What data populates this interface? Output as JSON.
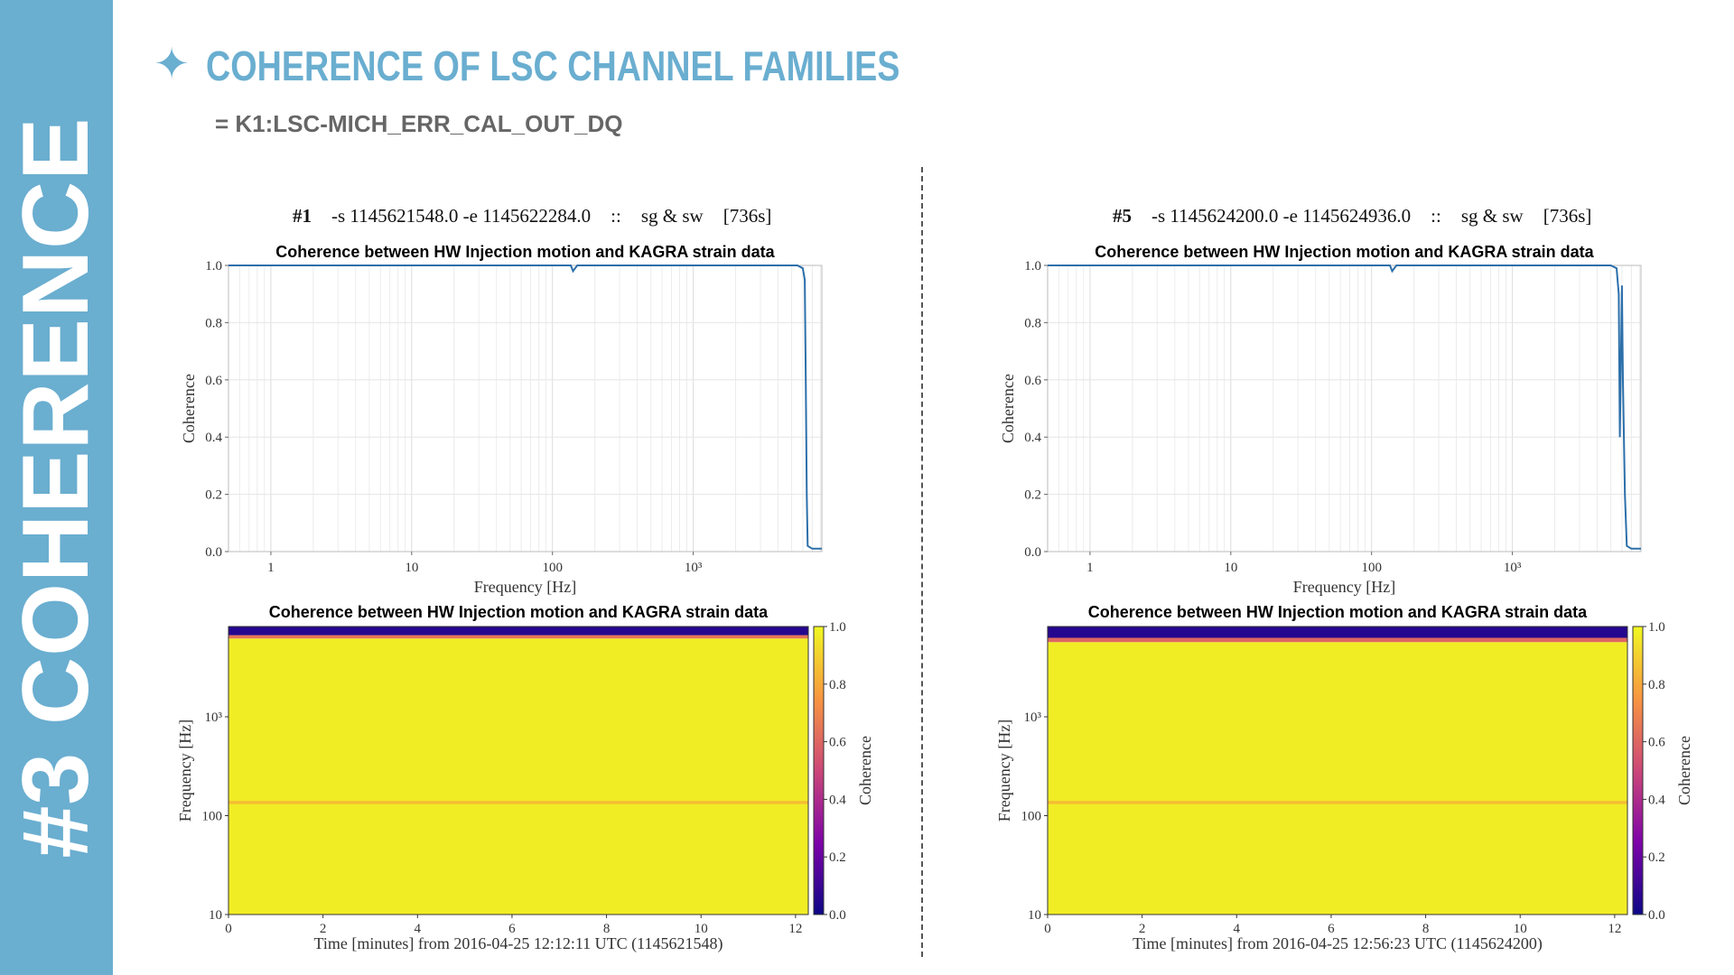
{
  "sidebar": {
    "text": "#3 COHERENCE"
  },
  "header": {
    "star": "✦",
    "title": "COHERENCE OF LSC CHANNEL FAMILIES",
    "subtitle": "= K1:LSC-MICH_ERR_CAL_OUT_DQ"
  },
  "colors": {
    "accent": "#6aaed0",
    "line": "#2c6faa",
    "colormap": "plasma"
  },
  "panels": [
    {
      "run_id": "#1",
      "run_args": "-s 1145621548.0 -e 1145622284.0",
      "sep": "::",
      "mode": "sg & sw",
      "duration": "[736s]"
    },
    {
      "run_id": "#5",
      "run_args": "-s 1145624200.0 -e 1145624936.0",
      "sep": "::",
      "mode": "sg & sw",
      "duration": "[736s]"
    }
  ],
  "chart_data": [
    {
      "type": "line",
      "title": "Coherence between HW Injection motion and KAGRA strain data",
      "xlabel": "Frequency [Hz]",
      "ylabel": "Coherence",
      "xscale": "log",
      "xlim": [
        0.5,
        8192
      ],
      "ylim": [
        0,
        1
      ],
      "xticks": [
        "1",
        "10",
        "100",
        "10³"
      ],
      "yticks": [
        "0.0",
        "0.2",
        "0.4",
        "0.6",
        "0.8",
        "1.0"
      ],
      "grid": true,
      "x": [
        0.5,
        100,
        135,
        140,
        150,
        1000,
        3000,
        5500,
        6000,
        6200,
        6300,
        6400,
        6500,
        7000,
        8192
      ],
      "y": [
        1.0,
        1.0,
        1.0,
        0.98,
        1.0,
        1.0,
        1.0,
        1.0,
        0.99,
        0.95,
        0.6,
        0.2,
        0.02,
        0.01,
        0.01
      ]
    },
    {
      "type": "heatmap",
      "title": "Coherence between HW Injection motion and KAGRA strain data",
      "xlabel": "Time [minutes] from 2016-04-25 12:12:11 UTC (1145621548)",
      "ylabel": "Frequency [Hz]",
      "colorbar_label": "Coherence",
      "colormap": "plasma",
      "xlim": [
        0,
        12.27
      ],
      "xticks": [
        "0",
        "2",
        "4",
        "6",
        "8",
        "10",
        "12"
      ],
      "yscale": "log",
      "ylim": [
        10,
        8192
      ],
      "yticks": [
        "10",
        "100",
        "10³"
      ],
      "clim": [
        0,
        1
      ],
      "cticks": [
        "0.0",
        "0.2",
        "0.4",
        "0.6",
        "0.8",
        "1.0"
      ],
      "bands": [
        {
          "from": 10,
          "to": 6200,
          "coherence": 0.97
        },
        {
          "from": 131,
          "to": 141,
          "coherence": 0.85
        },
        {
          "from": 6200,
          "to": 6700,
          "coherence": 0.65
        },
        {
          "from": 6700,
          "to": 8192,
          "coherence": 0.05
        }
      ]
    },
    {
      "type": "line",
      "title": "Coherence between HW Injection motion and KAGRA strain data",
      "xlabel": "Frequency [Hz]",
      "ylabel": "Coherence",
      "xscale": "log",
      "xlim": [
        0.5,
        8192
      ],
      "ylim": [
        0,
        1
      ],
      "xticks": [
        "1",
        "10",
        "100",
        "10³"
      ],
      "yticks": [
        "0.0",
        "0.2",
        "0.4",
        "0.6",
        "0.8",
        "1.0"
      ],
      "grid": true,
      "x": [
        0.5,
        100,
        135,
        140,
        150,
        1000,
        3000,
        5000,
        5500,
        5700,
        5800,
        6000,
        6100,
        6300,
        6500,
        7000,
        8192
      ],
      "y": [
        1.0,
        1.0,
        1.0,
        0.98,
        1.0,
        1.0,
        1.0,
        1.0,
        0.99,
        0.9,
        0.4,
        0.93,
        0.6,
        0.2,
        0.02,
        0.01,
        0.01
      ]
    },
    {
      "type": "heatmap",
      "title": "Coherence between HW Injection motion and KAGRA strain data",
      "xlabel": "Time [minutes] from 2016-04-25 12:56:23 UTC (1145624200)",
      "ylabel": "Frequency [Hz]",
      "colorbar_label": "Coherence",
      "colormap": "plasma",
      "xlim": [
        0,
        12.27
      ],
      "xticks": [
        "0",
        "2",
        "4",
        "6",
        "8",
        "10",
        "12"
      ],
      "yscale": "log",
      "ylim": [
        10,
        8192
      ],
      "yticks": [
        "10",
        "100",
        "10³"
      ],
      "clim": [
        0,
        1
      ],
      "cticks": [
        "0.0",
        "0.2",
        "0.4",
        "0.6",
        "0.8",
        "1.0"
      ],
      "bands": [
        {
          "from": 10,
          "to": 5700,
          "coherence": 0.97
        },
        {
          "from": 131,
          "to": 141,
          "coherence": 0.85
        },
        {
          "from": 5700,
          "to": 6300,
          "coherence": 0.6
        },
        {
          "from": 6300,
          "to": 8192,
          "coherence": 0.05
        }
      ]
    }
  ]
}
